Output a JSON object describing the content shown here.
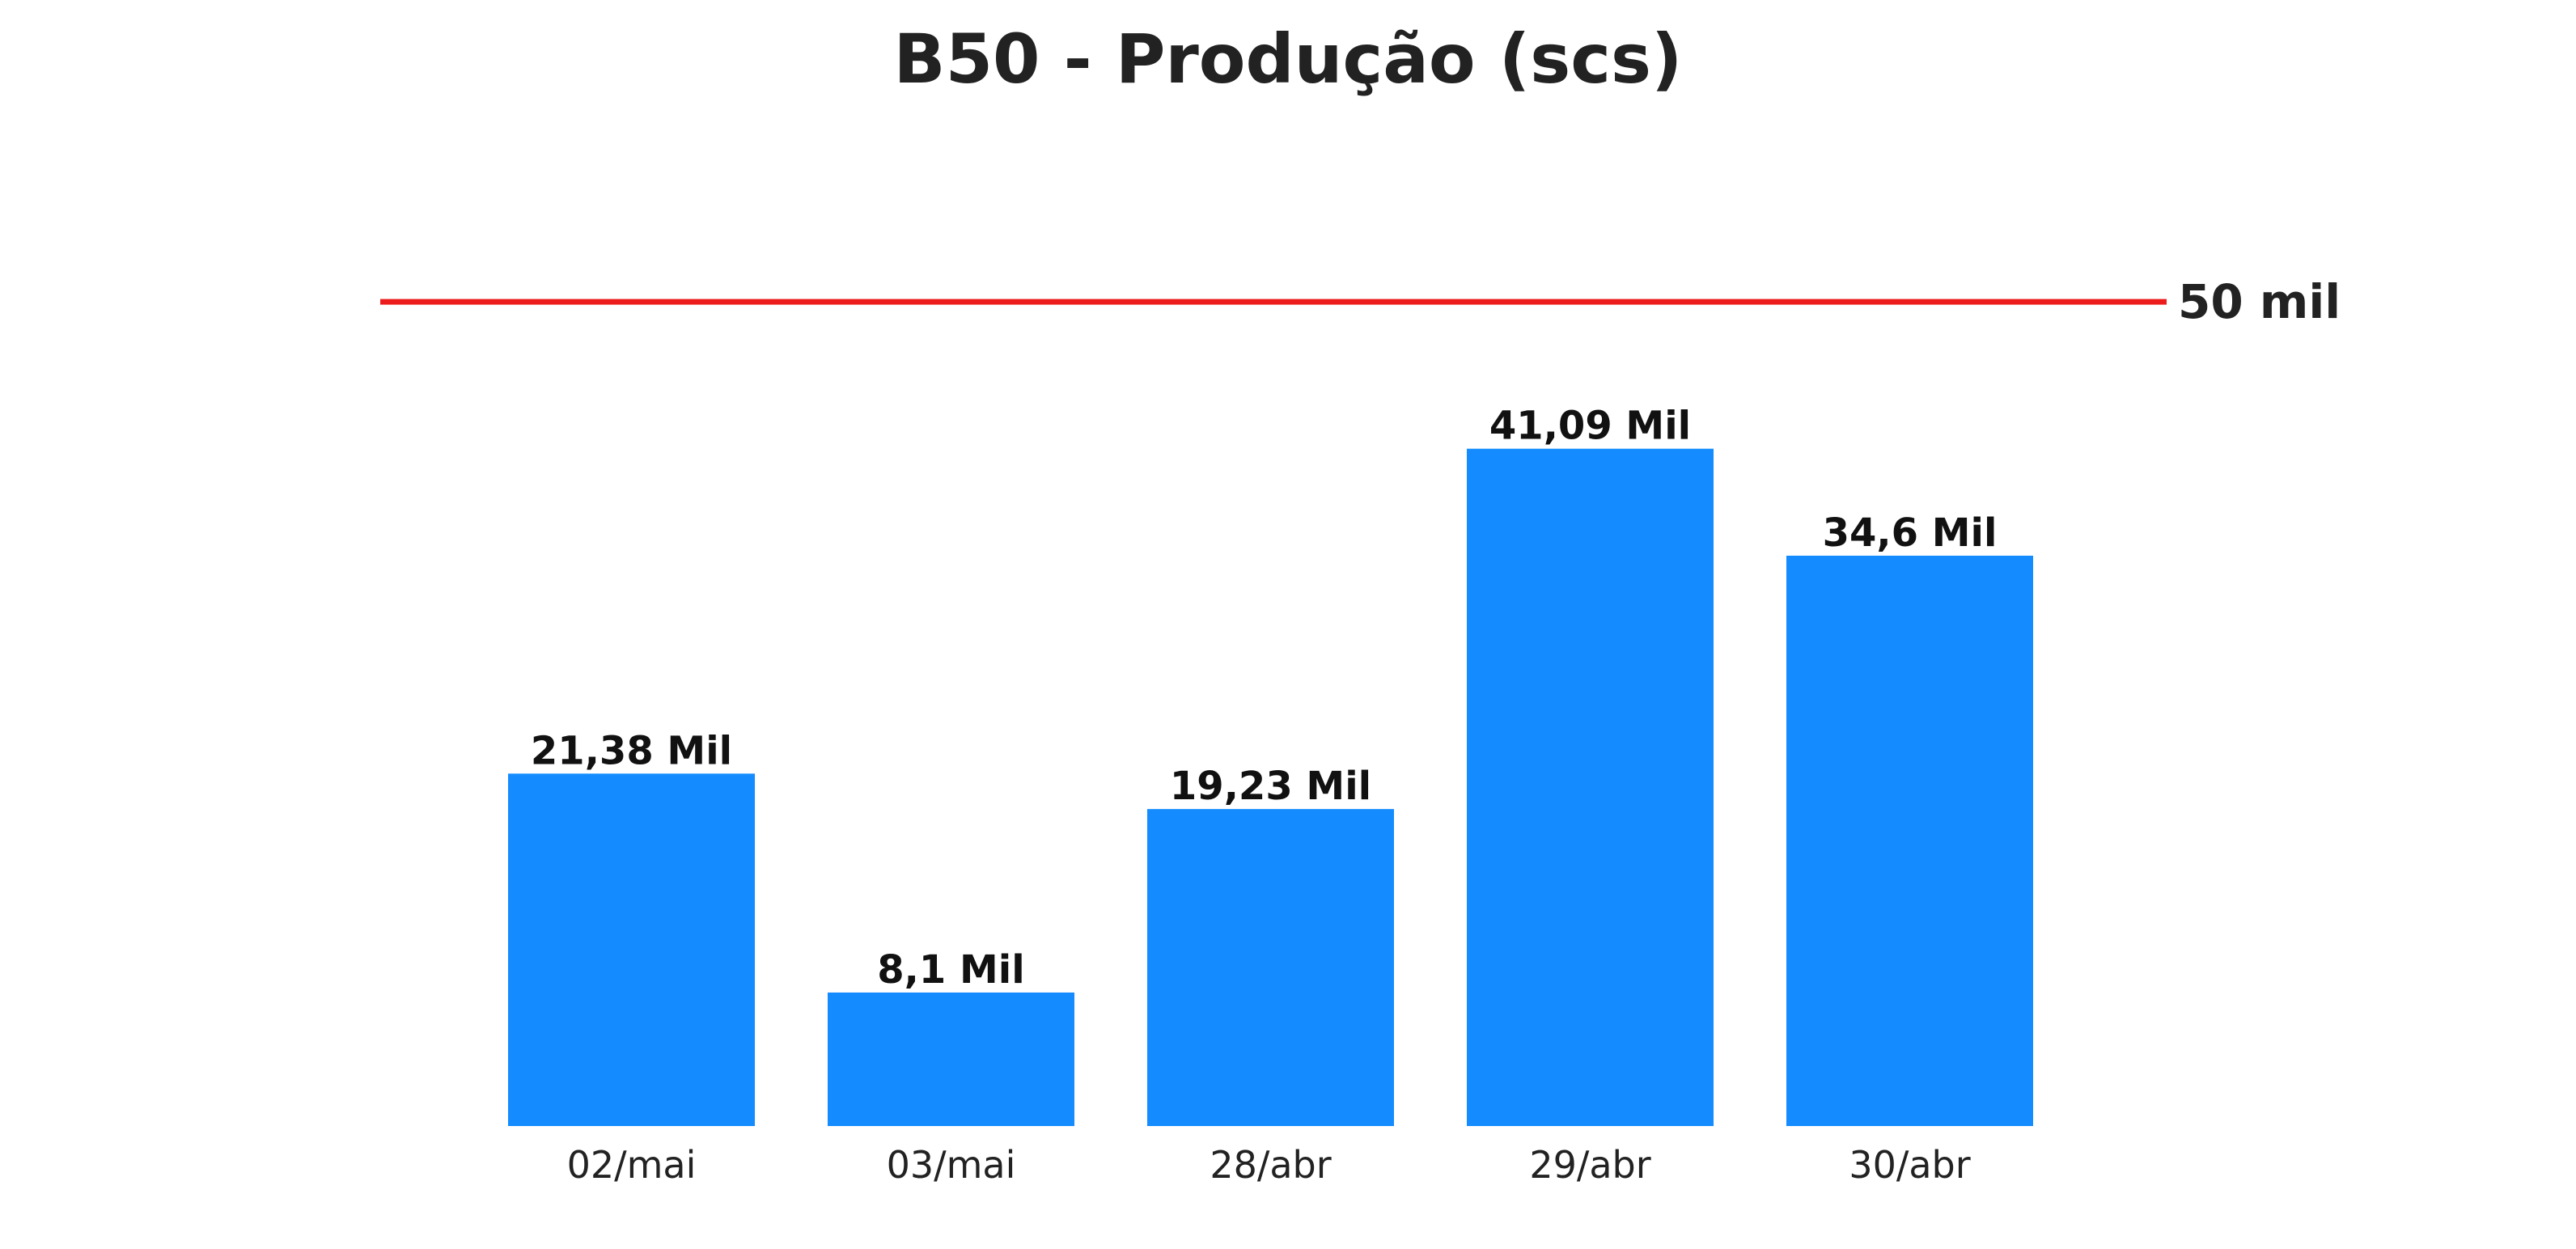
{
  "chart_data": {
    "type": "bar",
    "title": "B50 - Produção (scs)",
    "categories": [
      "02/mai",
      "03/mai",
      "28/abr",
      "29/abr",
      "30/abr"
    ],
    "values": [
      21380,
      8100,
      19230,
      41090,
      34600
    ],
    "data_labels": [
      "21,38 Mil",
      "8,1 Mil",
      "19,23 Mil",
      "41,09 Mil",
      "34,6 Mil"
    ],
    "ylim": [
      0,
      53000
    ],
    "grid": false,
    "xlabel": "",
    "ylabel": "",
    "target_line": {
      "value": 50000,
      "label": "50 mil",
      "color": "#EC1C1C"
    },
    "colors": {
      "bar": "#148CFF",
      "data_label": "#111111",
      "tick_label": "#222222",
      "target_label": "#222222"
    }
  }
}
